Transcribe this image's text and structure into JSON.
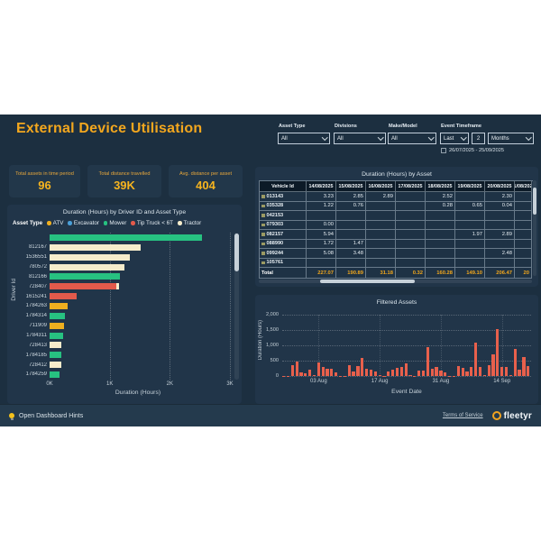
{
  "header": {
    "title": "External Device Utilisation"
  },
  "filters": {
    "asset_type": {
      "label": "Asset Type",
      "value": "All"
    },
    "divisions": {
      "label": "Divisions",
      "value": "All"
    },
    "make_model": {
      "label": "Make/Model",
      "value": "All"
    },
    "event_timeframe": {
      "label": "Event Timeframe",
      "last": "Last",
      "count": "2",
      "unit": "Months",
      "range": "26/07/2025 - 25/09/2025"
    }
  },
  "kpis": [
    {
      "label": "Total assets in time period",
      "value": "96"
    },
    {
      "label": "Total distance travelled",
      "value": "39K"
    },
    {
      "label": "Avg. distance per asset",
      "value": "404"
    }
  ],
  "chart_data": [
    {
      "type": "bar",
      "orientation": "horizontal",
      "title": "Duration (Hours) by Driver ID and Asset Type",
      "xlabel": "Duration (Hours)",
      "ylabel": "Driver Id",
      "xlim": [
        0,
        3000
      ],
      "xticks": [
        "0K",
        "1K",
        "2K",
        "3K"
      ],
      "legend_title": "Asset Type",
      "legend": [
        {
          "name": "ATV",
          "color": "#EFAF1F"
        },
        {
          "name": "Excavator",
          "color": "#4A9FD8"
        },
        {
          "name": "Mower",
          "color": "#27C281"
        },
        {
          "name": "Tip Truck < 6T",
          "color": "#E25A4B"
        },
        {
          "name": "Tractor",
          "color": "#F6ECCB"
        }
      ],
      "bars": [
        {
          "label": "",
          "segments": [
            {
              "asset": "Mower",
              "value": 2530
            }
          ]
        },
        {
          "label": "812167",
          "segments": [
            {
              "asset": "Tractor",
              "value": 1520
            }
          ]
        },
        {
          "label": "1536551",
          "segments": [
            {
              "asset": "Tractor",
              "value": 1330
            }
          ]
        },
        {
          "label": "780572",
          "segments": [
            {
              "asset": "Tractor",
              "value": 1240
            }
          ]
        },
        {
          "label": "812166",
          "segments": [
            {
              "asset": "Mower",
              "value": 1170
            }
          ]
        },
        {
          "label": "728407",
          "segments": [
            {
              "asset": "Tip Truck < 6T",
              "value": 1110
            },
            {
              "asset": "Tractor",
              "value": 40
            }
          ]
        },
        {
          "label": "1615241",
          "segments": [
            {
              "asset": "Tip Truck < 6T",
              "value": 450
            }
          ]
        },
        {
          "label": "1784263",
          "segments": [
            {
              "asset": "ATV",
              "value": 300
            }
          ]
        },
        {
          "label": "1784314",
          "segments": [
            {
              "asset": "Mower",
              "value": 250
            }
          ]
        },
        {
          "label": "711909",
          "segments": [
            {
              "asset": "ATV",
              "value": 240
            }
          ]
        },
        {
          "label": "1784311",
          "segments": [
            {
              "asset": "Mower",
              "value": 230
            }
          ]
        },
        {
          "label": "728413",
          "segments": [
            {
              "asset": "Tractor",
              "value": 200
            }
          ]
        },
        {
          "label": "1784185",
          "segments": [
            {
              "asset": "Mower",
              "value": 190
            }
          ]
        },
        {
          "label": "728412",
          "segments": [
            {
              "asset": "Tractor",
              "value": 190
            }
          ]
        },
        {
          "label": "1784259",
          "segments": [
            {
              "asset": "Mower",
              "value": 170
            }
          ]
        }
      ]
    },
    {
      "type": "table",
      "title": "Duration (Hours) by Asset",
      "columns": [
        "Vehicle Id",
        "14/08/2025",
        "15/08/2025",
        "16/08/2025",
        "17/08/2025",
        "18/08/2025",
        "19/08/2025",
        "20/08/2025",
        "21/08/2025"
      ],
      "rows": [
        [
          "013143",
          "3.23",
          "2.85",
          "2.89",
          "",
          "2.52",
          "",
          "2.30",
          ""
        ],
        [
          "035328",
          "1.22",
          "0.76",
          "",
          "",
          "0.28",
          "0.65",
          "0.04",
          ""
        ],
        [
          "042153",
          "",
          "",
          "",
          "",
          "",
          "",
          "",
          ""
        ],
        [
          "079303",
          "0.00",
          "",
          "",
          "",
          "",
          "",
          "",
          ""
        ],
        [
          "082157",
          "5.94",
          "",
          "",
          "",
          "",
          "1.97",
          "2.89",
          ""
        ],
        [
          "088990",
          "1.72",
          "1.47",
          "",
          "",
          "",
          "",
          "",
          ""
        ],
        [
          "099244",
          "5.08",
          "3.48",
          "",
          "",
          "",
          "",
          "2.48",
          ""
        ],
        [
          "105761",
          "",
          "",
          "",
          "",
          "",
          "",
          "",
          ""
        ]
      ],
      "total_row": [
        "Total",
        "227.07",
        "190.89",
        "31.18",
        "0.32",
        "160.28",
        "149.10",
        "206.47",
        "20"
      ]
    },
    {
      "type": "bar",
      "title": "Filtered Assets",
      "xlabel": "Event Date",
      "ylabel": "Duration (Hours)",
      "ylim": [
        0,
        2000
      ],
      "yticks": [
        {
          "label": "0",
          "value": 0
        },
        {
          "label": "500",
          "value": 500
        },
        {
          "label": "1,000",
          "value": 1000
        },
        {
          "label": "1,500",
          "value": 1500
        },
        {
          "label": "2,000",
          "value": 2000
        }
      ],
      "x_tick_labels": [
        {
          "label": "03 Aug",
          "index": 8
        },
        {
          "label": "17 Aug",
          "index": 22
        },
        {
          "label": "31 Aug",
          "index": 36
        },
        {
          "label": "14 Sep",
          "index": 50
        }
      ],
      "bar_color": "#E8604C",
      "values": [
        5,
        8,
        340,
        480,
        120,
        75,
        195,
        30,
        430,
        280,
        250,
        230,
        120,
        15,
        8,
        350,
        150,
        320,
        590,
        230,
        200,
        150,
        35,
        10,
        150,
        200,
        270,
        280,
        400,
        30,
        10,
        170,
        190,
        950,
        250,
        280,
        170,
        120,
        12,
        8,
        330,
        270,
        150,
        280,
        1080,
        300,
        25,
        350,
        720,
        1520,
        300,
        290,
        20,
        870,
        200,
        630,
        320
      ]
    }
  ],
  "footer": {
    "hints": "Open Dashboard Hints",
    "terms": "Terms of Service",
    "brand": "fleetyr"
  }
}
